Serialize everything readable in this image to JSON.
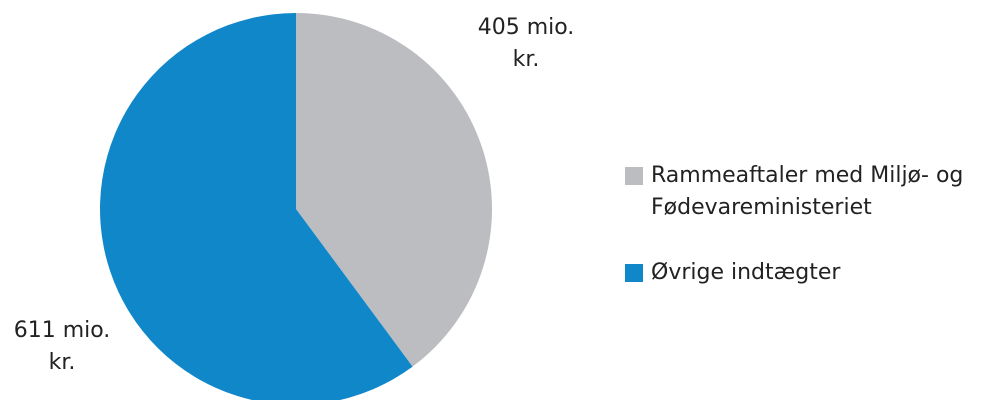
{
  "chart_data": {
    "type": "pie",
    "categories": [
      "Rammeaftaler med Miljø- og Fødevareministeriet",
      "Øvrige indtægter"
    ],
    "values": [
      405,
      611
    ],
    "value_labels": [
      "405 mio. kr.",
      "611 mio. kr."
    ],
    "colors": [
      "#bcbdc0",
      "#1087c9"
    ]
  }
}
